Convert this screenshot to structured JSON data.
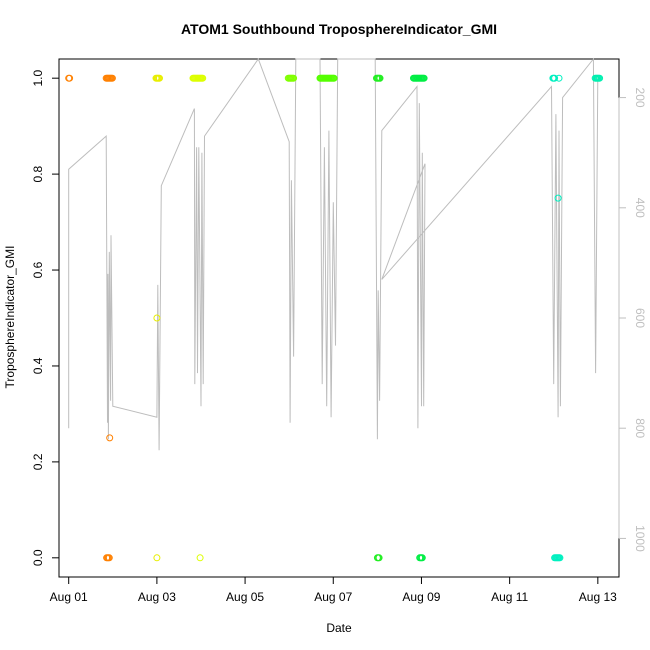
{
  "chart_data": {
    "type": "scatter",
    "title": "ATOM1 Southbound TroposphereIndicator_GMI",
    "xlabel": "Date",
    "ylabel": "TroposphereIndicator_GMI",
    "x_ticks": [
      "Aug 01",
      "Aug 03",
      "Aug 05",
      "Aug 07",
      "Aug 09",
      "Aug 11",
      "Aug 13"
    ],
    "x_tick_days": [
      1,
      3,
      5,
      7,
      9,
      11,
      13
    ],
    "xlim_days": [
      0.78,
      13.48
    ],
    "ylim": [
      -0.04,
      1.04
    ],
    "y_ticks": [
      "0.0",
      "0.2",
      "0.4",
      "0.6",
      "0.8",
      "1.0"
    ],
    "y_tick_values": [
      0,
      0.2,
      0.4,
      0.6,
      0.8,
      1.0
    ],
    "right_axis": {
      "label": "",
      "ticks": [
        "200",
        "400",
        "600",
        "800",
        "1000"
      ],
      "tick_values": [
        200,
        400,
        600,
        800,
        1000
      ],
      "lim": [
        1070,
        130
      ],
      "reversed": true,
      "color": "#bfbfbf"
    },
    "grid": false,
    "legend": "none",
    "trace_color": "#bdbdbd",
    "trace": [
      [
        1.0,
        600
      ],
      [
        1.0,
        800
      ],
      [
        1.0,
        330
      ],
      [
        1.85,
        270
      ],
      [
        1.88,
        790
      ],
      [
        1.89,
        520
      ],
      [
        1.9,
        820
      ],
      [
        1.92,
        480
      ],
      [
        1.95,
        750
      ],
      [
        1.96,
        450
      ],
      [
        2.0,
        760
      ],
      [
        3.0,
        780
      ],
      [
        3.02,
        540
      ],
      [
        3.05,
        840
      ],
      [
        3.1,
        360
      ],
      [
        3.85,
        220
      ],
      [
        3.86,
        720
      ],
      [
        3.9,
        290
      ],
      [
        3.92,
        700
      ],
      [
        3.95,
        290
      ],
      [
        4.0,
        760
      ],
      [
        4.02,
        300
      ],
      [
        4.05,
        720
      ],
      [
        4.08,
        270
      ],
      [
        5.3,
        130
      ],
      [
        6.0,
        280
      ],
      [
        6.02,
        790
      ],
      [
        6.05,
        350
      ],
      [
        6.1,
        670
      ],
      [
        6.15,
        130
      ],
      [
        6.7,
        130
      ],
      [
        6.75,
        720
      ],
      [
        6.8,
        290
      ],
      [
        6.85,
        760
      ],
      [
        6.9,
        260
      ],
      [
        6.95,
        780
      ],
      [
        7.0,
        390
      ],
      [
        7.05,
        650
      ],
      [
        7.1,
        130
      ],
      [
        7.95,
        130
      ],
      [
        8.0,
        820
      ],
      [
        8.02,
        550
      ],
      [
        8.05,
        750
      ],
      [
        8.1,
        260
      ],
      [
        8.9,
        180
      ],
      [
        8.92,
        800
      ],
      [
        8.95,
        210
      ],
      [
        9.0,
        760
      ],
      [
        9.02,
        300
      ],
      [
        9.05,
        760
      ],
      [
        9.08,
        320
      ],
      [
        8.1,
        530
      ],
      [
        11.95,
        180
      ],
      [
        12.0,
        720
      ],
      [
        12.05,
        230
      ],
      [
        12.1,
        780
      ],
      [
        12.12,
        260
      ],
      [
        12.15,
        760
      ],
      [
        12.2,
        200
      ],
      [
        12.9,
        130
      ],
      [
        12.95,
        700
      ],
      [
        13.0,
        160
      ]
    ],
    "series": [
      {
        "color": "#ff8000",
        "points": [
          [
            1.0,
            1.0
          ],
          [
            1.02,
            1.0
          ],
          [
            1.85,
            1.0
          ],
          [
            1.87,
            1.0
          ],
          [
            1.89,
            1.0
          ],
          [
            1.91,
            1.0
          ],
          [
            1.93,
            1.0
          ],
          [
            1.95,
            1.0
          ],
          [
            1.97,
            1.0
          ],
          [
            1.99,
            1.0
          ],
          [
            1.86,
            0.0
          ],
          [
            1.88,
            0.0
          ],
          [
            1.9,
            0.0
          ],
          [
            1.92,
            0.0
          ],
          [
            1.93,
            0.25
          ]
        ]
      },
      {
        "color": "#e8ee00",
        "points": [
          [
            2.98,
            1.0
          ],
          [
            3.0,
            1.0
          ],
          [
            3.02,
            1.0
          ],
          [
            3.04,
            1.0
          ],
          [
            3.06,
            1.0
          ],
          [
            3.0,
            0.5
          ],
          [
            3.0,
            0.0
          ]
        ]
      },
      {
        "color": "#ddff00",
        "points": [
          [
            3.82,
            1.0
          ],
          [
            3.84,
            1.0
          ],
          [
            3.86,
            1.0
          ],
          [
            3.88,
            1.0
          ],
          [
            3.9,
            1.0
          ],
          [
            3.92,
            1.0
          ],
          [
            3.94,
            1.0
          ],
          [
            3.96,
            1.0
          ],
          [
            3.98,
            1.0
          ],
          [
            4.0,
            1.0
          ],
          [
            4.02,
            1.0
          ],
          [
            4.04,
            1.0
          ],
          [
            3.98,
            0.0
          ]
        ]
      },
      {
        "color": "#80ff00",
        "points": [
          [
            5.98,
            1.0
          ],
          [
            6.0,
            1.0
          ],
          [
            6.02,
            1.0
          ],
          [
            6.04,
            1.0
          ],
          [
            6.06,
            1.0
          ],
          [
            6.08,
            1.0
          ],
          [
            6.1,
            1.0
          ]
        ]
      },
      {
        "color": "#55ff00",
        "points": [
          [
            6.7,
            1.0
          ],
          [
            6.72,
            1.0
          ],
          [
            6.74,
            1.0
          ],
          [
            6.76,
            1.0
          ],
          [
            6.78,
            1.0
          ],
          [
            6.8,
            1.0
          ],
          [
            6.82,
            1.0
          ],
          [
            6.84,
            1.0
          ],
          [
            6.86,
            1.0
          ],
          [
            6.88,
            1.0
          ],
          [
            6.9,
            1.0
          ],
          [
            6.92,
            1.0
          ],
          [
            6.94,
            1.0
          ],
          [
            6.96,
            1.0
          ],
          [
            6.98,
            1.0
          ],
          [
            7.0,
            1.0
          ],
          [
            7.02,
            1.0
          ]
        ]
      },
      {
        "color": "#22ee22",
        "points": [
          [
            7.98,
            1.0
          ],
          [
            8.0,
            1.0
          ],
          [
            8.02,
            1.0
          ],
          [
            8.04,
            1.0
          ],
          [
            8.06,
            1.0
          ],
          [
            8.0,
            0.0
          ],
          [
            8.02,
            0.0
          ],
          [
            8.04,
            0.0
          ]
        ]
      },
      {
        "color": "#00ee44",
        "points": [
          [
            8.82,
            1.0
          ],
          [
            8.84,
            1.0
          ],
          [
            8.86,
            1.0
          ],
          [
            8.88,
            1.0
          ],
          [
            8.9,
            1.0
          ],
          [
            8.92,
            1.0
          ],
          [
            8.94,
            1.0
          ],
          [
            8.96,
            1.0
          ],
          [
            8.98,
            1.0
          ],
          [
            9.0,
            1.0
          ],
          [
            9.02,
            1.0
          ],
          [
            9.04,
            1.0
          ],
          [
            9.06,
            1.0
          ],
          [
            8.96,
            0.0
          ],
          [
            8.98,
            0.0
          ],
          [
            9.0,
            0.0
          ],
          [
            9.02,
            0.0
          ]
        ]
      },
      {
        "color": "#00f0c0",
        "points": [
          [
            11.98,
            1.0
          ],
          [
            12.0,
            1.0
          ],
          [
            12.02,
            1.0
          ],
          [
            12.12,
            1.0
          ],
          [
            12.1,
            0.75
          ],
          [
            12.02,
            0.0
          ],
          [
            12.04,
            0.0
          ],
          [
            12.06,
            0.0
          ],
          [
            12.08,
            0.0
          ],
          [
            12.1,
            0.0
          ],
          [
            12.12,
            0.0
          ],
          [
            12.14,
            0.0
          ]
        ]
      },
      {
        "color": "#00f0b0",
        "points": [
          [
            12.94,
            1.0
          ],
          [
            12.96,
            1.0
          ],
          [
            12.98,
            1.0
          ],
          [
            13.0,
            1.0
          ],
          [
            13.02,
            1.0
          ],
          [
            13.04,
            1.0
          ]
        ]
      }
    ]
  }
}
